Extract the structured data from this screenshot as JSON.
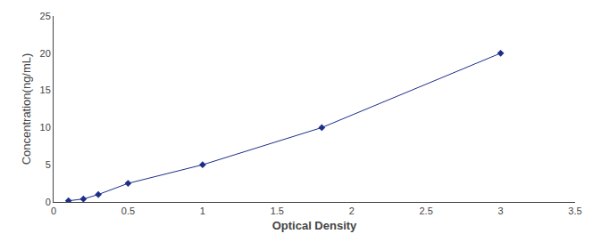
{
  "chart_data": {
    "type": "line",
    "xlabel": "Optical Density",
    "ylabel": "Concentration(ng/mL)",
    "x": [
      0.1,
      0.2,
      0.3,
      0.5,
      1.0,
      1.8,
      3.0
    ],
    "values": [
      0.16,
      0.4,
      1.0,
      2.5,
      5.0,
      10.0,
      20.0
    ],
    "color": "#1C2E8A",
    "marker": "diamond",
    "xlim": [
      0,
      3.5
    ],
    "ylim": [
      0,
      25
    ],
    "xticks": [
      0,
      0.5,
      1.0,
      1.5,
      2.0,
      2.5,
      3.0,
      3.5
    ],
    "yticks": [
      0,
      5,
      10,
      15,
      20,
      25
    ],
    "grid": false
  }
}
